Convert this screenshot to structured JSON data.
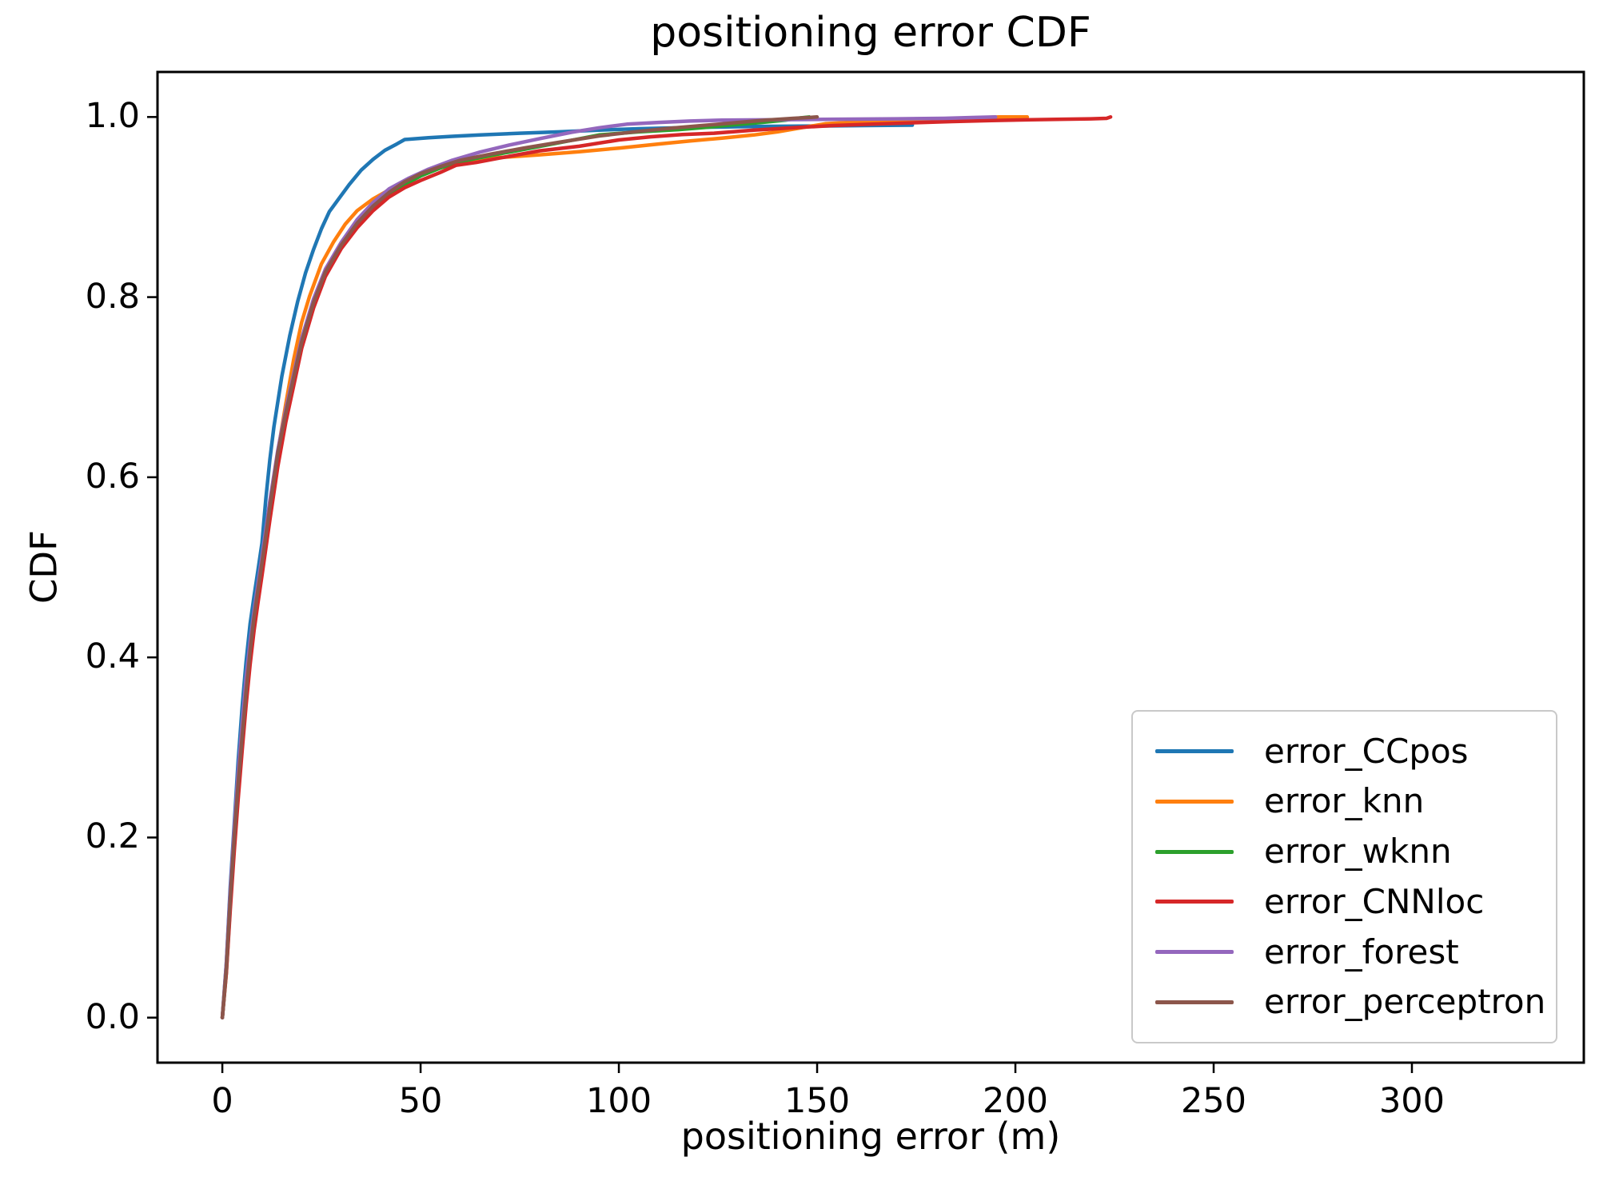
{
  "figure": {
    "title": "positioning error CDF",
    "xlabel": "positioning error (m)",
    "ylabel": "CDF"
  },
  "chart_data": {
    "type": "line",
    "title": "positioning error CDF",
    "xlabel": "positioning error (m)",
    "ylabel": "CDF",
    "xlim": [
      -16.35,
      343.35
    ],
    "ylim": [
      -0.05,
      1.05
    ],
    "xticks": [
      0,
      50,
      100,
      150,
      200,
      250,
      300
    ],
    "xtick_labels": [
      "0",
      "50",
      "100",
      "150",
      "200",
      "250",
      "300"
    ],
    "yticks": [
      0.0,
      0.2,
      0.4,
      0.6,
      0.8,
      1.0
    ],
    "ytick_labels": [
      "0.0",
      "0.2",
      "0.4",
      "0.6",
      "0.8",
      "1.0"
    ],
    "grid": false,
    "legend": {
      "position": "lower right",
      "labels": [
        "error_CCpos",
        "error_knn",
        "error_wknn",
        "error_CNNloc",
        "error_forest",
        "error_perceptron"
      ]
    },
    "series": [
      {
        "name": "error_CCpos",
        "color": "#1f77b4",
        "points": [
          [
            0,
            0
          ],
          [
            1,
            0.06
          ],
          [
            2,
            0.145
          ],
          [
            3,
            0.215
          ],
          [
            4,
            0.285
          ],
          [
            5,
            0.345
          ],
          [
            6,
            0.395
          ],
          [
            7,
            0.437
          ],
          [
            8,
            0.468
          ],
          [
            9,
            0.497
          ],
          [
            10,
            0.527
          ],
          [
            11,
            0.577
          ],
          [
            12,
            0.62
          ],
          [
            13,
            0.656
          ],
          [
            15,
            0.712
          ],
          [
            17,
            0.757
          ],
          [
            19,
            0.795
          ],
          [
            21,
            0.827
          ],
          [
            23,
            0.853
          ],
          [
            25,
            0.876
          ],
          [
            27,
            0.895
          ],
          [
            29,
            0.907
          ],
          [
            32,
            0.925
          ],
          [
            35,
            0.941
          ],
          [
            38,
            0.953
          ],
          [
            41,
            0.963
          ],
          [
            44,
            0.97
          ],
          [
            46,
            0.975
          ],
          [
            52,
            0.977
          ],
          [
            58,
            0.9785
          ],
          [
            65,
            0.98
          ],
          [
            75,
            0.982
          ],
          [
            85,
            0.9835
          ],
          [
            95,
            0.9855
          ],
          [
            105,
            0.987
          ],
          [
            120,
            0.9885
          ],
          [
            135,
            0.9895
          ],
          [
            150,
            0.99
          ],
          [
            162,
            0.9905
          ],
          [
            174,
            0.991
          ]
        ]
      },
      {
        "name": "error_knn",
        "color": "#ff7f0e",
        "points": [
          [
            0,
            0
          ],
          [
            1,
            0.055
          ],
          [
            2,
            0.13
          ],
          [
            3,
            0.2
          ],
          [
            4,
            0.26
          ],
          [
            5,
            0.317
          ],
          [
            6,
            0.367
          ],
          [
            7,
            0.407
          ],
          [
            8,
            0.442
          ],
          [
            9,
            0.472
          ],
          [
            10,
            0.502
          ],
          [
            12,
            0.566
          ],
          [
            14,
            0.628
          ],
          [
            16,
            0.681
          ],
          [
            18,
            0.731
          ],
          [
            20,
            0.772
          ],
          [
            22,
            0.801
          ],
          [
            25,
            0.837
          ],
          [
            28,
            0.861
          ],
          [
            31,
            0.881
          ],
          [
            34,
            0.896
          ],
          [
            38,
            0.909
          ],
          [
            42,
            0.919
          ],
          [
            46,
            0.927
          ],
          [
            50,
            0.935
          ],
          [
            54,
            0.942
          ],
          [
            58,
            0.948
          ],
          [
            64,
            0.952
          ],
          [
            70,
            0.955
          ],
          [
            80,
            0.958
          ],
          [
            90,
            0.9615
          ],
          [
            100,
            0.9655
          ],
          [
            110,
            0.97
          ],
          [
            118,
            0.9735
          ],
          [
            126,
            0.9765
          ],
          [
            134,
            0.98
          ],
          [
            140,
            0.9835
          ],
          [
            146,
            0.988
          ],
          [
            152,
            0.9925
          ],
          [
            160,
            0.9945
          ],
          [
            170,
            0.996
          ],
          [
            180,
            0.9975
          ],
          [
            190,
            0.999
          ],
          [
            196,
            1.0
          ],
          [
            203,
            1.0
          ]
        ]
      },
      {
        "name": "error_wknn",
        "color": "#2ca02c",
        "points": [
          [
            0,
            0
          ],
          [
            1,
            0.05
          ],
          [
            2,
            0.125
          ],
          [
            3,
            0.19
          ],
          [
            4,
            0.252
          ],
          [
            5,
            0.307
          ],
          [
            6,
            0.357
          ],
          [
            7,
            0.402
          ],
          [
            8,
            0.44
          ],
          [
            9,
            0.471
          ],
          [
            10,
            0.5
          ],
          [
            12,
            0.562
          ],
          [
            14,
            0.622
          ],
          [
            16,
            0.667
          ],
          [
            18,
            0.708
          ],
          [
            20,
            0.746
          ],
          [
            23,
            0.79
          ],
          [
            26,
            0.825
          ],
          [
            30,
            0.856
          ],
          [
            34,
            0.879
          ],
          [
            38,
            0.898
          ],
          [
            42,
            0.913
          ],
          [
            46,
            0.925
          ],
          [
            50,
            0.9345
          ],
          [
            55,
            0.9435
          ],
          [
            60,
            0.9505
          ],
          [
            68,
            0.9575
          ],
          [
            76,
            0.964
          ],
          [
            85,
            0.9715
          ],
          [
            95,
            0.98
          ],
          [
            105,
            0.9835
          ],
          [
            115,
            0.986
          ],
          [
            122,
            0.9885
          ],
          [
            128,
            0.991
          ],
          [
            136,
            0.994
          ],
          [
            142,
            0.9965
          ],
          [
            146,
            0.999
          ],
          [
            148,
            1.0
          ]
        ]
      },
      {
        "name": "error_CNNloc",
        "color": "#d62728",
        "points": [
          [
            0,
            0
          ],
          [
            1,
            0.05
          ],
          [
            2,
            0.12
          ],
          [
            3,
            0.185
          ],
          [
            4,
            0.243
          ],
          [
            5,
            0.297
          ],
          [
            6,
            0.347
          ],
          [
            7,
            0.392
          ],
          [
            8,
            0.43
          ],
          [
            9,
            0.461
          ],
          [
            10,
            0.491
          ],
          [
            12,
            0.553
          ],
          [
            14,
            0.612
          ],
          [
            16,
            0.661
          ],
          [
            18,
            0.702
          ],
          [
            20,
            0.743
          ],
          [
            23,
            0.788
          ],
          [
            26,
            0.823
          ],
          [
            30,
            0.854
          ],
          [
            34,
            0.877
          ],
          [
            38,
            0.896
          ],
          [
            42,
            0.911
          ],
          [
            46,
            0.9215
          ],
          [
            50,
            0.9295
          ],
          [
            55,
            0.9385
          ],
          [
            59,
            0.9465
          ],
          [
            64,
            0.9495
          ],
          [
            70,
            0.9545
          ],
          [
            80,
            0.9625
          ],
          [
            90,
            0.9675
          ],
          [
            100,
            0.9745
          ],
          [
            108,
            0.978
          ],
          [
            116,
            0.9805
          ],
          [
            124,
            0.982
          ],
          [
            134,
            0.9855
          ],
          [
            144,
            0.988
          ],
          [
            154,
            0.9905
          ],
          [
            164,
            0.992
          ],
          [
            174,
            0.9935
          ],
          [
            184,
            0.995
          ],
          [
            194,
            0.996
          ],
          [
            204,
            0.997
          ],
          [
            212,
            0.9975
          ],
          [
            219,
            0.998
          ],
          [
            223,
            0.9985
          ],
          [
            224,
            1.0
          ]
        ]
      },
      {
        "name": "error_forest",
        "color": "#9467bd",
        "points": [
          [
            0,
            0
          ],
          [
            1,
            0.06
          ],
          [
            2,
            0.14
          ],
          [
            3,
            0.21
          ],
          [
            4,
            0.272
          ],
          [
            5,
            0.327
          ],
          [
            6,
            0.377
          ],
          [
            7,
            0.417
          ],
          [
            8,
            0.452
          ],
          [
            9,
            0.482
          ],
          [
            10,
            0.512
          ],
          [
            12,
            0.574
          ],
          [
            14,
            0.63
          ],
          [
            16,
            0.675
          ],
          [
            18,
            0.715
          ],
          [
            20,
            0.754
          ],
          [
            23,
            0.798
          ],
          [
            26,
            0.831
          ],
          [
            30,
            0.861
          ],
          [
            34,
            0.886
          ],
          [
            38,
            0.905
          ],
          [
            42,
            0.92
          ],
          [
            47,
            0.932
          ],
          [
            52,
            0.942
          ],
          [
            58,
            0.952
          ],
          [
            65,
            0.961
          ],
          [
            72,
            0.9685
          ],
          [
            80,
            0.976
          ],
          [
            88,
            0.983
          ],
          [
            95,
            0.988
          ],
          [
            102,
            0.992
          ],
          [
            110,
            0.994
          ],
          [
            118,
            0.9955
          ],
          [
            126,
            0.9965
          ],
          [
            140,
            0.997
          ],
          [
            155,
            0.9975
          ],
          [
            170,
            0.998
          ],
          [
            182,
            0.9985
          ],
          [
            190,
            0.9995
          ],
          [
            195,
            1.0
          ]
        ]
      },
      {
        "name": "error_perceptron",
        "color": "#8c564b",
        "points": [
          [
            0,
            0
          ],
          [
            1,
            0.055
          ],
          [
            2,
            0.132
          ],
          [
            3,
            0.2
          ],
          [
            4,
            0.26
          ],
          [
            5,
            0.312
          ],
          [
            6,
            0.362
          ],
          [
            7,
            0.407
          ],
          [
            8,
            0.445
          ],
          [
            9,
            0.475
          ],
          [
            10,
            0.505
          ],
          [
            12,
            0.567
          ],
          [
            14,
            0.627
          ],
          [
            16,
            0.671
          ],
          [
            18,
            0.711
          ],
          [
            20,
            0.75
          ],
          [
            23,
            0.794
          ],
          [
            26,
            0.828
          ],
          [
            30,
            0.858
          ],
          [
            34,
            0.882
          ],
          [
            38,
            0.901
          ],
          [
            42,
            0.916
          ],
          [
            46,
            0.928
          ],
          [
            50,
            0.937
          ],
          [
            55,
            0.945
          ],
          [
            60,
            0.952
          ],
          [
            68,
            0.959
          ],
          [
            76,
            0.9655
          ],
          [
            85,
            0.972
          ],
          [
            95,
            0.979
          ],
          [
            105,
            0.984
          ],
          [
            113,
            0.9875
          ],
          [
            121,
            0.9905
          ],
          [
            129,
            0.9935
          ],
          [
            137,
            0.9965
          ],
          [
            144,
            0.9985
          ],
          [
            150,
            1.0
          ]
        ]
      }
    ]
  }
}
